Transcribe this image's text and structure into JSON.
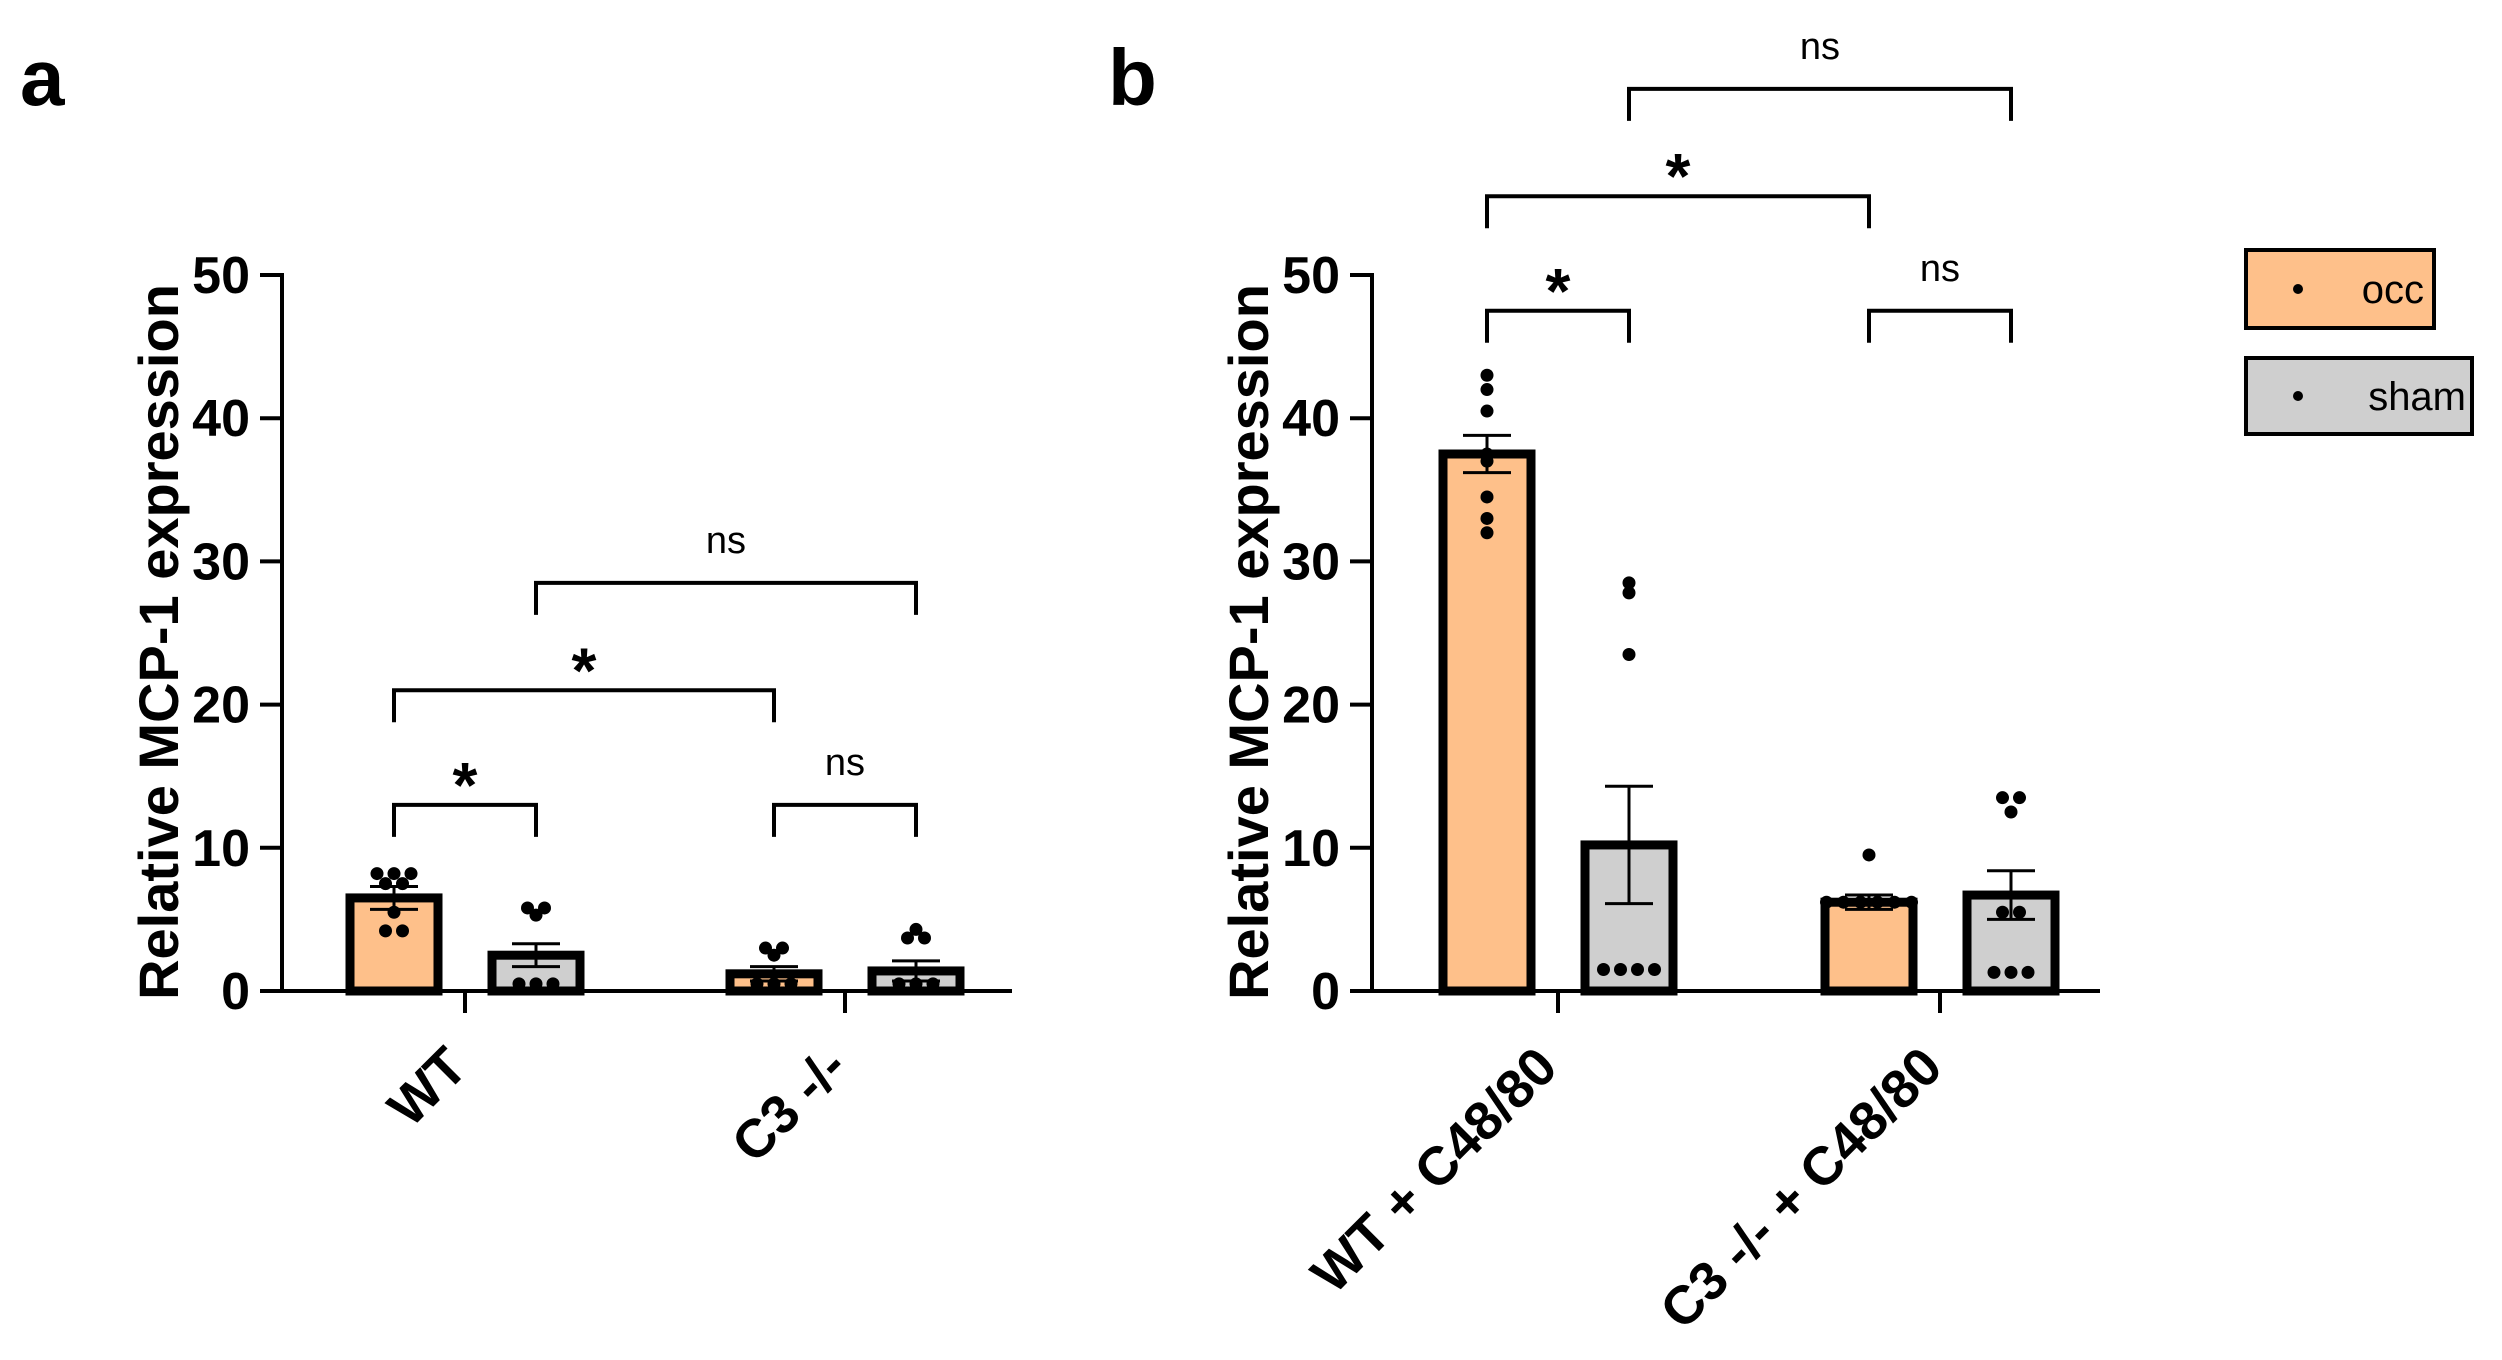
{
  "colors": {
    "occ": "#FEC08A",
    "sham": "#CFCFCF",
    "ink": "#000000"
  },
  "legend": [
    {
      "key": "occ",
      "label": "occ"
    },
    {
      "key": "sham",
      "label": "sham"
    }
  ],
  "chart_data": [
    {
      "panel": "a",
      "type": "bar",
      "ylabel": "Relative MCP-1 expression",
      "ylim": [
        0,
        50
      ],
      "yticks": [
        0,
        10,
        20,
        30,
        40,
        50
      ],
      "categories": [
        "WT",
        "C3 -/-"
      ],
      "series": [
        {
          "name": "occ",
          "values": [
            6.5,
            1.2
          ],
          "errors": [
            0.8,
            0.5
          ],
          "points": [
            [
              8.2,
              8.2,
              8.2,
              7.5,
              7.5,
              5.5,
              4.2,
              4.2
            ],
            [
              3.0,
              3.0,
              2.5,
              0.5,
              0.5,
              0.5
            ]
          ]
        },
        {
          "name": "sham",
          "values": [
            2.5,
            1.4
          ],
          "errors": [
            0.8,
            0.7
          ],
          "points": [
            [
              5.8,
              5.8,
              5.3,
              0.5,
              0.5,
              0.5
            ],
            [
              4.3,
              3.7,
              3.7,
              0.5,
              0.5,
              0.5
            ]
          ]
        }
      ],
      "comparisons": [
        {
          "from": [
            0,
            "occ"
          ],
          "to": [
            0,
            "sham"
          ],
          "level": 13,
          "label": "*"
        },
        {
          "from": [
            0,
            "occ"
          ],
          "to": [
            1,
            "occ"
          ],
          "level": 21,
          "label": "*"
        },
        {
          "from": [
            0,
            "sham"
          ],
          "to": [
            1,
            "sham"
          ],
          "level": 28.5,
          "label": "ns"
        },
        {
          "from": [
            1,
            "occ"
          ],
          "to": [
            1,
            "sham"
          ],
          "level": 13,
          "label": "ns"
        }
      ]
    },
    {
      "panel": "b",
      "type": "bar",
      "ylabel": "Relative MCP-1 expression",
      "ylim": [
        0,
        50
      ],
      "yticks": [
        0,
        10,
        20,
        30,
        40,
        50
      ],
      "categories": [
        "WT + C48/80",
        "C3 -/- + C48/80"
      ],
      "series": [
        {
          "name": "occ",
          "values": [
            37.5,
            6.2
          ],
          "errors": [
            1.3,
            0.5
          ],
          "points": [
            [
              43,
              42,
              40.5,
              37.5,
              37,
              34.5,
              33,
              32
            ],
            [
              9.5,
              6.2,
              6.2,
              6.2,
              6.2,
              6.2,
              6.2
            ]
          ]
        },
        {
          "name": "sham",
          "values": [
            10.2,
            6.7
          ],
          "errors": [
            4.1,
            1.7
          ],
          "points": [
            [
              28.5,
              27.8,
              23.5,
              1.5,
              1.5,
              1.5,
              1.5
            ],
            [
              13.5,
              13.5,
              12.5,
              5.5,
              5.5,
              1.3,
              1.3,
              1.3
            ]
          ]
        }
      ],
      "comparisons": [
        {
          "from": [
            0,
            "occ"
          ],
          "to": [
            0,
            "sham"
          ],
          "level": 47.5,
          "label": "*"
        },
        {
          "from": [
            0,
            "occ"
          ],
          "to": [
            1,
            "occ"
          ],
          "level": 55.5,
          "label": "*"
        },
        {
          "from": [
            0,
            "sham"
          ],
          "to": [
            1,
            "sham"
          ],
          "level": 63,
          "label": "ns"
        },
        {
          "from": [
            1,
            "occ"
          ],
          "to": [
            1,
            "sham"
          ],
          "level": 47.5,
          "label": "ns"
        }
      ]
    }
  ]
}
